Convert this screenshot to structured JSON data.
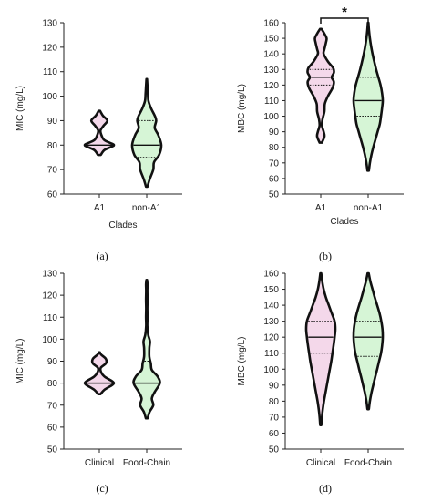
{
  "figure": {
    "panels": [
      {
        "label": "(a)",
        "chart_data": {
          "type": "violin",
          "ylabel": "MIC (mg/L)",
          "xlabel": "Clades",
          "ylim": [
            60,
            130
          ],
          "yticks": [
            60,
            70,
            80,
            90,
            100,
            110,
            120,
            130
          ],
          "categories": [
            "A1",
            "non-A1"
          ],
          "series": [
            {
              "category": "A1",
              "fill": "#f4d8ea",
              "median": 80,
              "q1": 80,
              "q3": 80,
              "min": 76,
              "max": 94,
              "density": [
                [
                  76,
                  0.1
                ],
                [
                  78,
                  0.35
                ],
                [
                  79.5,
                  0.9
                ],
                [
                  80,
                  1.0
                ],
                [
                  80.5,
                  0.9
                ],
                [
                  82,
                  0.35
                ],
                [
                  84,
                  0.15
                ],
                [
                  86,
                  0.08
                ],
                [
                  88,
                  0.3
                ],
                [
                  90,
                  0.55
                ],
                [
                  92,
                  0.25
                ],
                [
                  94,
                  0.05
                ]
              ]
            },
            {
              "category": "non-A1",
              "fill": "#d6f5d6",
              "median": 80,
              "q1": 75,
              "q3": 90,
              "min": 63,
              "max": 107,
              "density": [
                [
                  63,
                  0.05
                ],
                [
                  66,
                  0.2
                ],
                [
                  70,
                  0.45
                ],
                [
                  73,
                  0.5
                ],
                [
                  76,
                  0.85
                ],
                [
                  80,
                  1.0
                ],
                [
                  84,
                  0.8
                ],
                [
                  87,
                  0.55
                ],
                [
                  90,
                  0.65
                ],
                [
                  92,
                  0.55
                ],
                [
                  95,
                  0.3
                ],
                [
                  98,
                  0.12
                ],
                [
                  101,
                  0.08
                ],
                [
                  104,
                  0.05
                ],
                [
                  107,
                  0.02
                ]
              ]
            }
          ]
        }
      },
      {
        "label": "(b)",
        "chart_data": {
          "type": "violin",
          "ylabel": "MBC (mg/L)",
          "xlabel": "Clades",
          "ylim": [
            50,
            160
          ],
          "yticks": [
            50,
            60,
            70,
            80,
            90,
            100,
            110,
            120,
            130,
            140,
            150,
            160
          ],
          "categories": [
            "A1",
            "non-A1"
          ],
          "annotation": "*",
          "series": [
            {
              "category": "A1",
              "fill": "#f4d8ea",
              "median": 125,
              "q1": 120,
              "q3": 130,
              "min": 83,
              "max": 156,
              "density": [
                [
                  83,
                  0.08
                ],
                [
                  87,
                  0.25
                ],
                [
                  90,
                  0.2
                ],
                [
                  94,
                  0.08
                ],
                [
                  98,
                  0.12
                ],
                [
                  103,
                  0.25
                ],
                [
                  108,
                  0.28
                ],
                [
                  113,
                  0.5
                ],
                [
                  118,
                  0.8
                ],
                [
                  122,
                  0.9
                ],
                [
                  125,
                  0.75
                ],
                [
                  128,
                  0.9
                ],
                [
                  131,
                  0.85
                ],
                [
                  135,
                  0.5
                ],
                [
                  140,
                  0.2
                ],
                [
                  143,
                  0.25
                ],
                [
                  147,
                  0.35
                ],
                [
                  150,
                  0.4
                ],
                [
                  153,
                  0.25
                ],
                [
                  156,
                  0.05
                ]
              ]
            },
            {
              "category": "non-A1",
              "fill": "#d6f5d6",
              "median": 110,
              "q1": 100,
              "q3": 125,
              "min": 65,
              "max": 160,
              "density": [
                [
                  65,
                  0.05
                ],
                [
                  70,
                  0.12
                ],
                [
                  75,
                  0.22
                ],
                [
                  80,
                  0.35
                ],
                [
                  85,
                  0.5
                ],
                [
                  90,
                  0.65
                ],
                [
                  95,
                  0.8
                ],
                [
                  100,
                  0.88
                ],
                [
                  105,
                  0.95
                ],
                [
                  110,
                  1.0
                ],
                [
                  115,
                  0.95
                ],
                [
                  120,
                  0.85
                ],
                [
                  125,
                  0.7
                ],
                [
                  130,
                  0.55
                ],
                [
                  135,
                  0.42
                ],
                [
                  140,
                  0.3
                ],
                [
                  145,
                  0.2
                ],
                [
                  150,
                  0.12
                ],
                [
                  155,
                  0.06
                ],
                [
                  160,
                  0.02
                ]
              ]
            }
          ]
        }
      },
      {
        "label": "(c)",
        "chart_data": {
          "type": "violin",
          "ylabel": "MIC (mg/L)",
          "xlabel": "",
          "ylim": [
            50,
            130
          ],
          "yticks": [
            50,
            60,
            70,
            80,
            90,
            100,
            110,
            120,
            130
          ],
          "categories": [
            "Clinical",
            "Food-Chain"
          ],
          "series": [
            {
              "category": "Clinical",
              "fill": "#f4d8ea",
              "median": 80,
              "q1": 80,
              "q3": 80,
              "min": 75,
              "max": 94,
              "density": [
                [
                  75,
                  0.08
                ],
                [
                  77,
                  0.35
                ],
                [
                  79,
                  0.85
                ],
                [
                  80,
                  1.0
                ],
                [
                  81,
                  0.85
                ],
                [
                  83,
                  0.35
                ],
                [
                  85,
                  0.12
                ],
                [
                  87,
                  0.1
                ],
                [
                  89,
                  0.45
                ],
                [
                  91,
                  0.45
                ],
                [
                  93,
                  0.12
                ],
                [
                  94,
                  0.04
                ]
              ]
            },
            {
              "category": "Food-Chain",
              "fill": "#d6f5d6",
              "median": 80,
              "q1": 80,
              "q3": 90,
              "min": 64,
              "max": 127,
              "density": [
                [
                  64,
                  0.06
                ],
                [
                  67,
                  0.2
                ],
                [
                  70,
                  0.45
                ],
                [
                  73,
                  0.35
                ],
                [
                  76,
                  0.55
                ],
                [
                  80,
                  0.9
                ],
                [
                  83,
                  0.75
                ],
                [
                  86,
                  0.35
                ],
                [
                  89,
                  0.28
                ],
                [
                  92,
                  0.18
                ],
                [
                  96,
                  0.18
                ],
                [
                  99,
                  0.22
                ],
                [
                  102,
                  0.1
                ],
                [
                  106,
                  0.04
                ],
                [
                  110,
                  0.05
                ],
                [
                  114,
                  0.04
                ],
                [
                  118,
                  0.05
                ],
                [
                  122,
                  0.04
                ],
                [
                  125,
                  0.05
                ],
                [
                  127,
                  0.02
                ]
              ]
            }
          ]
        }
      },
      {
        "label": "(d)",
        "chart_data": {
          "type": "violin",
          "ylabel": "MBC (mg/L)",
          "xlabel": "",
          "ylim": [
            50,
            160
          ],
          "yticks": [
            50,
            60,
            70,
            80,
            90,
            100,
            110,
            120,
            130,
            140,
            150,
            160
          ],
          "categories": [
            "Clinical",
            "Food-Chain"
          ],
          "series": [
            {
              "category": "Clinical",
              "fill": "#f4d8ea",
              "median": 120,
              "q1": 110,
              "q3": 130,
              "min": 65,
              "max": 160,
              "density": [
                [
                  65,
                  0.04
                ],
                [
                  70,
                  0.08
                ],
                [
                  75,
                  0.14
                ],
                [
                  80,
                  0.22
                ],
                [
                  85,
                  0.32
                ],
                [
                  90,
                  0.42
                ],
                [
                  95,
                  0.52
                ],
                [
                  100,
                  0.62
                ],
                [
                  105,
                  0.72
                ],
                [
                  110,
                  0.8
                ],
                [
                  115,
                  0.88
                ],
                [
                  120,
                  0.95
                ],
                [
                  125,
                  1.0
                ],
                [
                  130,
                  0.95
                ],
                [
                  135,
                  0.75
                ],
                [
                  140,
                  0.55
                ],
                [
                  145,
                  0.35
                ],
                [
                  150,
                  0.2
                ],
                [
                  155,
                  0.1
                ],
                [
                  160,
                  0.03
                ]
              ]
            },
            {
              "category": "Food-Chain",
              "fill": "#d6f5d6",
              "median": 120,
              "q1": 108,
              "q3": 130,
              "min": 75,
              "max": 160,
              "density": [
                [
                  75,
                  0.05
                ],
                [
                  80,
                  0.12
                ],
                [
                  85,
                  0.22
                ],
                [
                  90,
                  0.35
                ],
                [
                  95,
                  0.48
                ],
                [
                  100,
                  0.62
                ],
                [
                  105,
                  0.75
                ],
                [
                  110,
                  0.88
                ],
                [
                  115,
                  0.96
                ],
                [
                  120,
                  1.0
                ],
                [
                  125,
                  0.98
                ],
                [
                  130,
                  0.9
                ],
                [
                  135,
                  0.78
                ],
                [
                  140,
                  0.62
                ],
                [
                  145,
                  0.45
                ],
                [
                  150,
                  0.3
                ],
                [
                  155,
                  0.15
                ],
                [
                  160,
                  0.04
                ]
              ]
            }
          ]
        }
      }
    ]
  }
}
